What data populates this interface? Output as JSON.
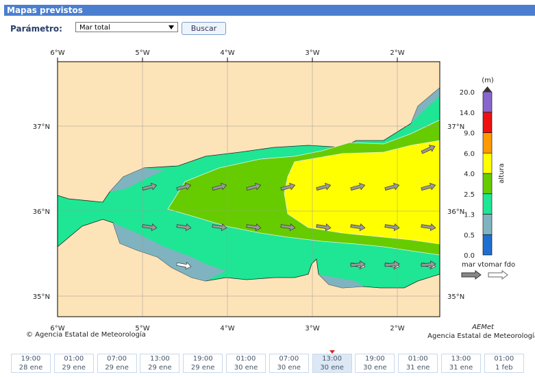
{
  "header": {
    "title": "Mapas previstos"
  },
  "form": {
    "label": "Parámetro:",
    "select": "Mar total",
    "button": "Buscar"
  },
  "map": {
    "lon_labels": [
      "6°W",
      "5°W",
      "4°W",
      "3°W",
      "2°W"
    ],
    "lat_labels": [
      "37°N",
      "36°N",
      "35°N"
    ],
    "credit": "© Agencia Estatal de Meteorología"
  },
  "colorbar": {
    "unit": "(m)",
    "title": "altura",
    "levels": [
      "0.0",
      "0.5",
      "1.3",
      "2.5",
      "4.0",
      "6.0",
      "9.0",
      "14.0",
      "20.0"
    ]
  },
  "legend": {
    "wind_sea": "mar vto",
    "swell": "mar fdo"
  },
  "logo": {
    "name": "AEMet",
    "subtitle": "Agencia Estatal de Meteorología"
  },
  "timeline": [
    {
      "time": "19:00",
      "date": "28 ene"
    },
    {
      "time": "01:00",
      "date": "29 ene"
    },
    {
      "time": "07:00",
      "date": "29 ene"
    },
    {
      "time": "13:00",
      "date": "29 ene"
    },
    {
      "time": "19:00",
      "date": "29 ene"
    },
    {
      "time": "01:00",
      "date": "30 ene"
    },
    {
      "time": "07:00",
      "date": "30 ene"
    },
    {
      "time": "13:00",
      "date": "30 ene"
    },
    {
      "time": "19:00",
      "date": "30 ene"
    },
    {
      "time": "01:00",
      "date": "31 ene"
    },
    {
      "time": "13:00",
      "date": "31 ene"
    },
    {
      "time": "01:00",
      "date": "1 feb"
    }
  ]
}
